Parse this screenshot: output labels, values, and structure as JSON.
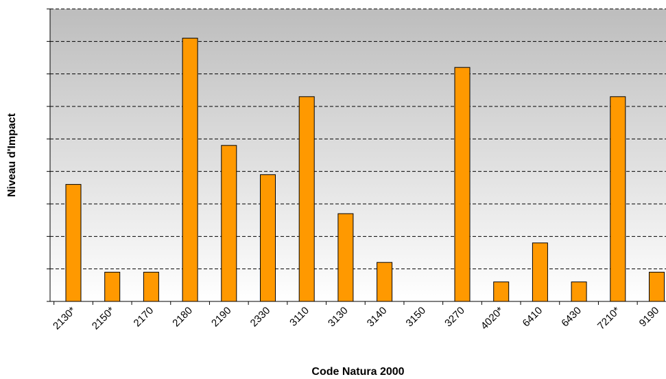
{
  "chart_data": {
    "type": "bar",
    "x_label": "Code Natura 2000",
    "y_label": "Niveau d'Impact",
    "categories": [
      "2130*",
      "2150*",
      "2170",
      "2180",
      "2190",
      "2330",
      "3110",
      "3130",
      "3140",
      "3150",
      "3270",
      "4020*",
      "6410",
      "6430",
      "7210*",
      "9190"
    ],
    "values": [
      3.6,
      0.9,
      0.9,
      8.1,
      4.8,
      3.9,
      6.3,
      2.7,
      1.2,
      0,
      7.2,
      0.6,
      1.8,
      0.6,
      6.3,
      0.9
    ],
    "color": "#ff9900",
    "ylim": [
      0,
      9
    ],
    "yticks": [
      0,
      1,
      2,
      3,
      4,
      5,
      6,
      7,
      8,
      9
    ],
    "grid": true
  }
}
